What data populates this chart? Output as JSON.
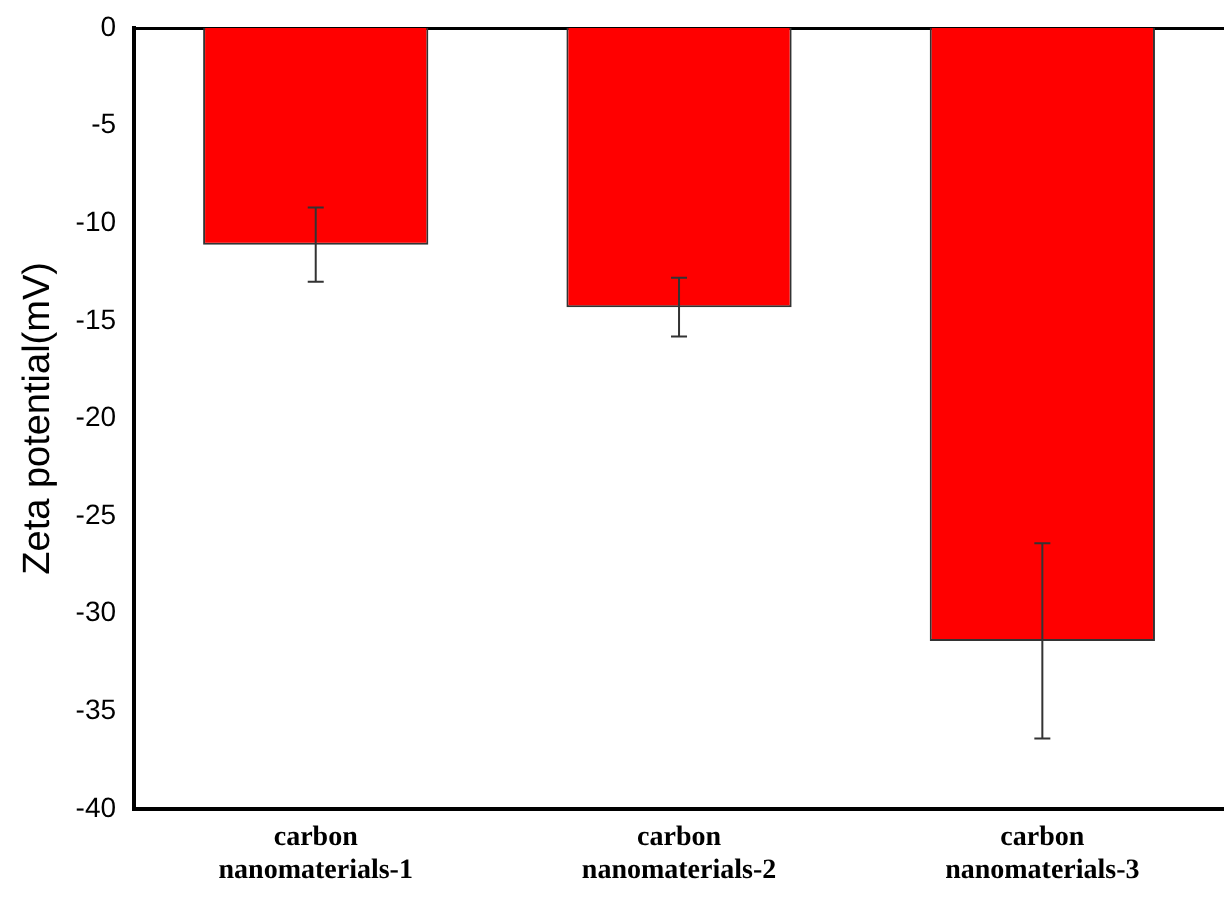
{
  "chart_data": {
    "type": "bar",
    "ylabel": "Zeta potential(mV)",
    "categories": [
      "carbon nanomaterials-1",
      "carbon nanomaterials-2",
      "carbon nanomaterials-3"
    ],
    "values": [
      -11.1,
      -14.3,
      -31.4
    ],
    "errors": [
      1.9,
      1.5,
      5.0
    ],
    "color": "#ff0000",
    "ylim": [
      -40,
      0
    ],
    "yticks": [
      -40,
      -35,
      -30,
      -25,
      -20,
      -15,
      -10,
      -5,
      0
    ],
    "grid": false,
    "legend": false
  }
}
